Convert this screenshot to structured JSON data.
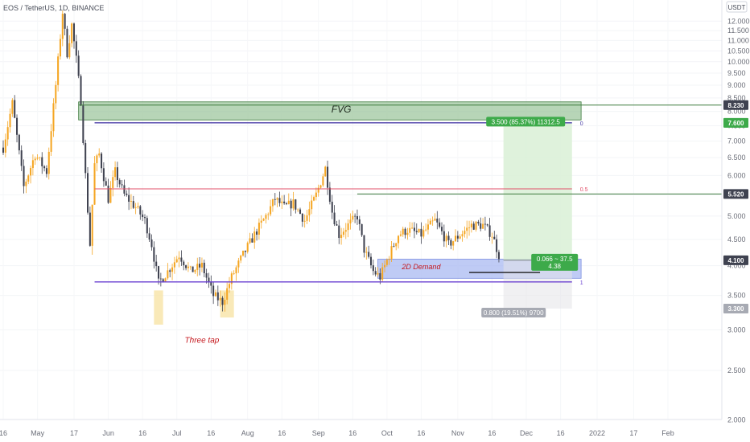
{
  "chart_header": "EOS / TetherUS, 1D, BINANCE",
  "colors": {
    "bull": "#f5a623",
    "bear": "#3f4250",
    "fvg_fill": "#9fc79f",
    "fvg_border": "#3d7a3d",
    "demand_fill": "#a9b9f2",
    "profit_fill": "#d9f0d6",
    "loss_fill": "#e3e4e8",
    "fib_line": "#4b3fa8",
    "fib_mid": "#e2506a",
    "purple_line": "#6a3fd0",
    "label_green": "#3daa4a",
    "label_dark": "#3f4250",
    "label_grey": "#a7aab3",
    "annotation_red": "#c4161c"
  },
  "chart_data": {
    "type": "candlestick",
    "title": "EOS / TetherUS, 1D, BINANCE",
    "y_axis_unit": "USDT",
    "y_scale": "log",
    "ylim": [
      1.92,
      13.1
    ],
    "y_ticks": [
      "12.000",
      "11.500",
      "11.000",
      "10.500",
      "10.000",
      "9.500",
      "9.000",
      "8.500",
      "8.000",
      "7.500",
      "7.000",
      "6.500",
      "6.000",
      "5.500",
      "5.000",
      "4.500",
      "4.000",
      "3.500",
      "3.000",
      "2.500",
      "2.000"
    ],
    "x_ticks": [
      "16",
      "May",
      "17",
      "Jun",
      "16",
      "Jul",
      "16",
      "Aug",
      "16",
      "Sep",
      "16",
      "Oct",
      "16",
      "Nov",
      "16",
      "Dec",
      "16",
      "2022",
      "17",
      "Feb"
    ],
    "x_tick_dates": [
      "2021-04-16",
      "2021-05-01",
      "2021-05-17",
      "2021-06-01",
      "2021-06-16",
      "2021-07-01",
      "2021-07-16",
      "2021-08-01",
      "2021-08-16",
      "2021-09-01",
      "2021-09-16",
      "2021-10-01",
      "2021-10-16",
      "2021-11-01",
      "2021-11-16",
      "2021-12-01",
      "2021-12-16",
      "2022-01-01",
      "2022-01-17",
      "2022-02-01"
    ],
    "price_path": [
      [
        "2021-04-16",
        6.8
      ],
      [
        "2021-04-20",
        8.3
      ],
      [
        "2021-04-25",
        5.7
      ],
      [
        "2021-04-30",
        6.6
      ],
      [
        "2021-05-05",
        6.1
      ],
      [
        "2021-05-09",
        9.0
      ],
      [
        "2021-05-12",
        12.5
      ],
      [
        "2021-05-14",
        10.4
      ],
      [
        "2021-05-16",
        11.8
      ],
      [
        "2021-05-18",
        10.1
      ],
      [
        "2021-05-20",
        8.4
      ],
      [
        "2021-05-22",
        6.0
      ],
      [
        "2021-05-24",
        4.4
      ],
      [
        "2021-05-26",
        6.3
      ],
      [
        "2021-05-28",
        6.6
      ],
      [
        "2021-06-01",
        5.4
      ],
      [
        "2021-06-04",
        6.1
      ],
      [
        "2021-06-08",
        5.5
      ],
      [
        "2021-06-13",
        5.2
      ],
      [
        "2021-06-17",
        4.9
      ],
      [
        "2021-06-20",
        4.4
      ],
      [
        "2021-06-23",
        3.7
      ],
      [
        "2021-06-27",
        3.9
      ],
      [
        "2021-07-02",
        4.2
      ],
      [
        "2021-07-07",
        3.9
      ],
      [
        "2021-07-12",
        4.0
      ],
      [
        "2021-07-17",
        3.5
      ],
      [
        "2021-07-21",
        3.4
      ],
      [
        "2021-07-25",
        3.8
      ],
      [
        "2021-07-30",
        4.2
      ],
      [
        "2021-08-04",
        4.6
      ],
      [
        "2021-08-09",
        5.0
      ],
      [
        "2021-08-13",
        5.4
      ],
      [
        "2021-08-17",
        5.2
      ],
      [
        "2021-08-21",
        5.3
      ],
      [
        "2021-08-26",
        4.9
      ],
      [
        "2021-08-31",
        5.5
      ],
      [
        "2021-09-04",
        6.2
      ],
      [
        "2021-09-07",
        5.1
      ],
      [
        "2021-09-10",
        4.6
      ],
      [
        "2021-09-14",
        4.8
      ],
      [
        "2021-09-18",
        5.0
      ],
      [
        "2021-09-21",
        4.3
      ],
      [
        "2021-09-25",
        3.9
      ],
      [
        "2021-09-28",
        3.8
      ],
      [
        "2021-10-02",
        4.2
      ],
      [
        "2021-10-06",
        4.6
      ],
      [
        "2021-10-10",
        4.7
      ],
      [
        "2021-10-16",
        4.6
      ],
      [
        "2021-10-22",
        4.9
      ],
      [
        "2021-10-28",
        4.4
      ],
      [
        "2021-11-02",
        4.6
      ],
      [
        "2021-11-07",
        4.8
      ],
      [
        "2021-11-12",
        4.8
      ],
      [
        "2021-11-16",
        4.6
      ],
      [
        "2021-11-19",
        4.2
      ]
    ],
    "zones": [
      {
        "label": "FVG",
        "from": "2021-05-19",
        "to": "2021-12-25",
        "low": 7.7,
        "high": 8.35
      },
      {
        "label": "2D Demand",
        "from": "2021-09-27",
        "to": "2021-12-25",
        "low": 3.78,
        "high": 4.12
      }
    ],
    "horizontal_levels": [
      {
        "price": 8.23,
        "from": "2021-05-19",
        "to": "2022-03-01",
        "kind": "fvg_top"
      },
      {
        "price": 7.6,
        "from": "2021-05-26",
        "to": "2021-12-21",
        "kind": "fib_0",
        "fib_label": "0"
      },
      {
        "price": 5.65,
        "from": "2021-05-26",
        "to": "2021-12-21",
        "kind": "fib_0.5",
        "fib_label": "0.5"
      },
      {
        "price": 5.52,
        "from": "2021-09-18",
        "to": "2022-03-01",
        "kind": "resistance"
      },
      {
        "price": 3.72,
        "from": "2021-05-26",
        "to": "2021-12-21",
        "kind": "fib_1",
        "fib_label": "1"
      },
      {
        "price": 3.88,
        "from": "2021-11-06",
        "to": "2021-12-07",
        "kind": "demand_line"
      }
    ],
    "position": {
      "entry": 4.1,
      "target": 7.6,
      "stop": 3.3,
      "from": "2021-11-21",
      "to": "2021-12-21",
      "profit_label": "3.500 (85.37%) 11312.5",
      "loss_label": "0.800 (19.51%) 9700",
      "rr_line1": "0.066 ~ 37.5",
      "rr_line2": "4.38"
    },
    "triple_tap_boxes": [
      {
        "from": "2021-06-21",
        "to": "2021-06-25",
        "low": 3.07,
        "high": 3.58
      },
      {
        "from": "2021-07-20",
        "to": "2021-07-26",
        "low": 3.17,
        "high": 3.58
      }
    ],
    "annotations": [
      {
        "text": "Three tap",
        "date": "2021-07-12",
        "price": 2.83
      },
      {
        "text": "2D Demand",
        "date": "2021-10-16",
        "price": 3.94
      },
      {
        "text": "FVG",
        "date": "2021-09-11",
        "price": 7.96
      }
    ],
    "price_labels": [
      {
        "text": "8.230",
        "price": 8.23,
        "bg": "#3f4250"
      },
      {
        "text": "7.600",
        "price": 7.6,
        "bg": "#3daa4a"
      },
      {
        "text": "5.520",
        "price": 5.52,
        "bg": "#3f4250"
      },
      {
        "text": "4.100",
        "price": 4.1,
        "bg": "#3f4250"
      },
      {
        "text": "3.300",
        "price": 3.3,
        "bg": "#a7aab3"
      }
    ]
  }
}
